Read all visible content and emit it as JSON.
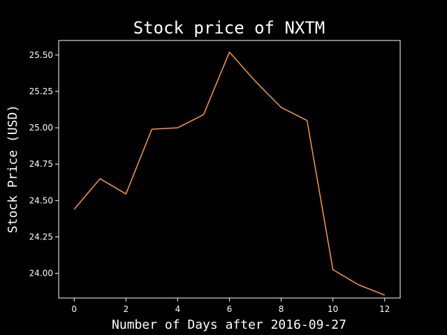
{
  "chart_data": {
    "type": "line",
    "title": "Stock price of NXTM",
    "xlabel": "Number of Days after 2016-09-27",
    "ylabel": "Stock Price (USD)",
    "xlim": [
      -0.6,
      12.6
    ],
    "ylim": [
      23.83,
      25.6
    ],
    "x_ticks": [
      0,
      2,
      4,
      6,
      8,
      10,
      12
    ],
    "y_ticks": [
      24.0,
      24.25,
      24.5,
      24.75,
      25.0,
      25.25,
      25.5
    ],
    "y_tick_format": 2,
    "grid": false,
    "series": [
      {
        "color": "#ff9933",
        "x": [
          0,
          1,
          2,
          3,
          4,
          5,
          6,
          7,
          8,
          9,
          10,
          11,
          12
        ],
        "values": [
          24.44,
          24.65,
          24.545,
          24.99,
          25.0,
          25.09,
          25.52,
          25.32,
          25.14,
          25.05,
          24.025,
          23.92,
          23.85
        ]
      }
    ]
  }
}
